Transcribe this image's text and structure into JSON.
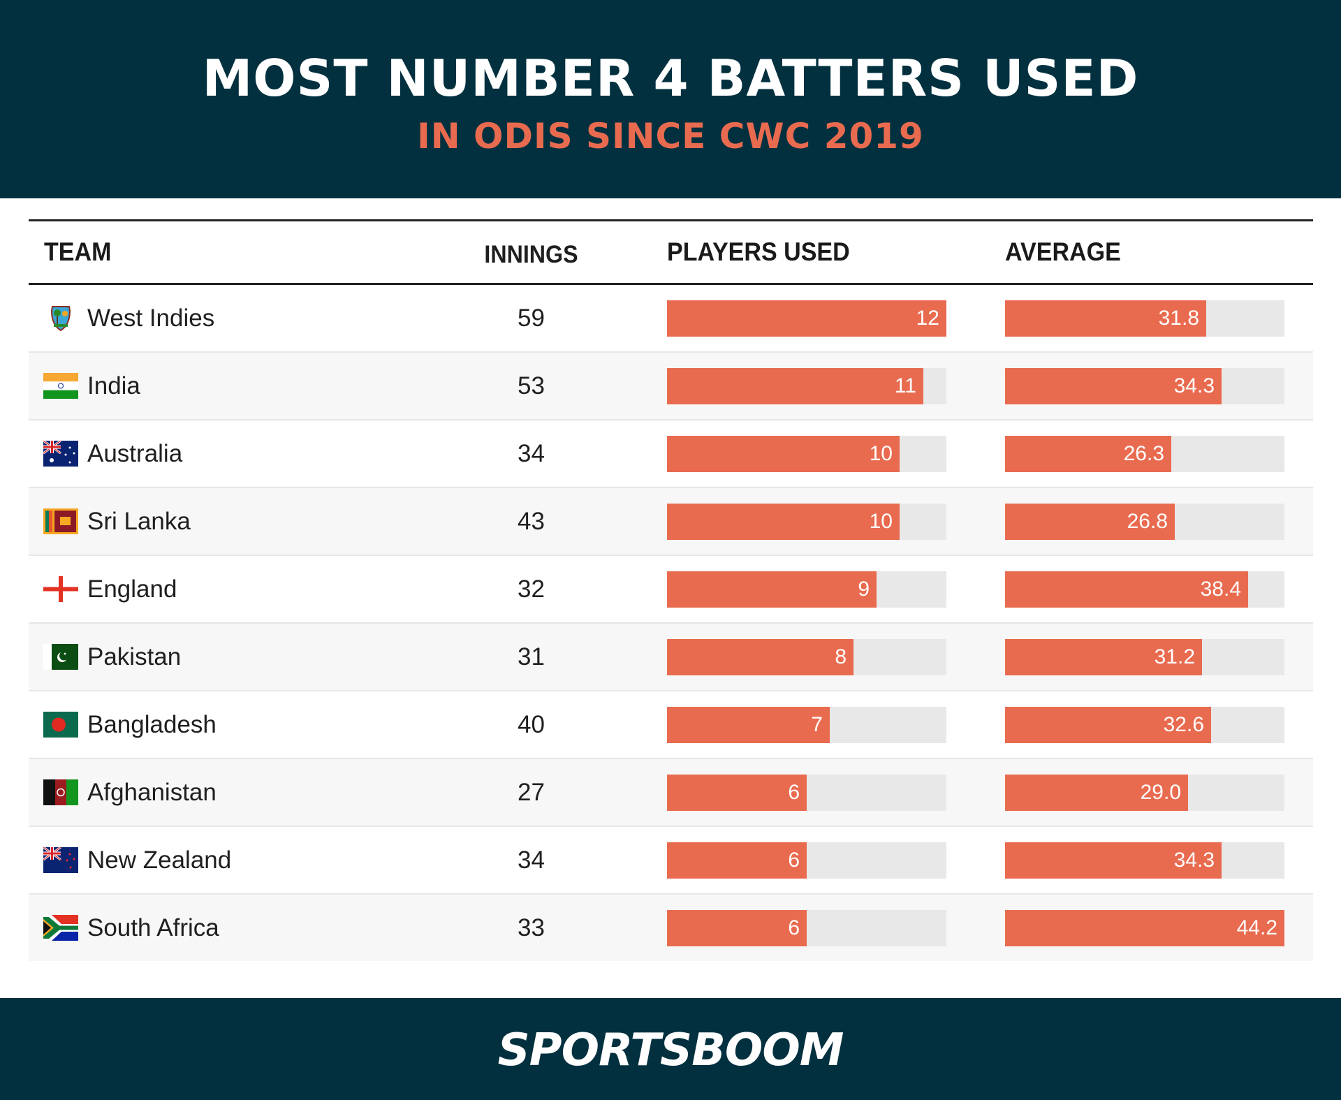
{
  "header": {
    "title": "MOST NUMBER 4 BATTERS USED",
    "subtitle": "IN ODIS SINCE CWC 2019"
  },
  "table": {
    "columns": [
      "TEAM",
      "INNINGS",
      "PLAYERS USED",
      "AVERAGE"
    ],
    "rows": [
      {
        "team": "West Indies",
        "flag": "west-indies-crest-icon",
        "innings": "59",
        "players": "12",
        "average": "31.8"
      },
      {
        "team": "India",
        "flag": "india-flag-icon",
        "innings": "53",
        "players": "11",
        "average": "34.3"
      },
      {
        "team": "Australia",
        "flag": "australia-flag-icon",
        "innings": "34",
        "players": "10",
        "average": "26.3"
      },
      {
        "team": "Sri Lanka",
        "flag": "sri-lanka-flag-icon",
        "innings": "43",
        "players": "10",
        "average": "26.8"
      },
      {
        "team": "England",
        "flag": "england-flag-icon",
        "innings": "32",
        "players": "9",
        "average": "38.4"
      },
      {
        "team": "Pakistan",
        "flag": "pakistan-flag-icon",
        "innings": "31",
        "players": "8",
        "average": "31.2"
      },
      {
        "team": "Bangladesh",
        "flag": "bangladesh-flag-icon",
        "innings": "40",
        "players": "7",
        "average": "32.6"
      },
      {
        "team": "Afghanistan",
        "flag": "afghanistan-flag-icon",
        "innings": "27",
        "players": "6",
        "average": "29.0"
      },
      {
        "team": "New Zealand",
        "flag": "new-zealand-flag-icon",
        "innings": "34",
        "players": "6",
        "average": "34.3"
      },
      {
        "team": "South Africa",
        "flag": "south-africa-flag-icon",
        "innings": "33",
        "players": "6",
        "average": "44.2"
      }
    ]
  },
  "footer": {
    "logo": "SPORTSBOOM"
  },
  "colors": {
    "background_dark": "#02303f",
    "accent": "#e96b4f",
    "bar_track": "#e8e8e8",
    "row_alt": "#f7f7f7"
  },
  "chart_data": {
    "type": "table",
    "title": "MOST NUMBER 4 BATTERS USED",
    "subtitle": "IN ODIS SINCE CWC 2019",
    "columns": [
      "Team",
      "Innings",
      "Players Used",
      "Average"
    ],
    "categories": [
      "West Indies",
      "India",
      "Australia",
      "Sri Lanka",
      "England",
      "Pakistan",
      "Bangladesh",
      "Afghanistan",
      "New Zealand",
      "South Africa"
    ],
    "series": [
      {
        "name": "Innings",
        "values": [
          59,
          53,
          34,
          43,
          32,
          31,
          40,
          27,
          34,
          33
        ]
      },
      {
        "name": "Players Used",
        "values": [
          12,
          11,
          10,
          10,
          9,
          8,
          7,
          6,
          6,
          6
        ],
        "display": "bar",
        "max": 12
      },
      {
        "name": "Average",
        "values": [
          31.8,
          34.3,
          26.3,
          26.8,
          38.4,
          31.2,
          32.6,
          29.0,
          34.3,
          44.2
        ],
        "display": "bar",
        "max": 44.2
      }
    ]
  }
}
